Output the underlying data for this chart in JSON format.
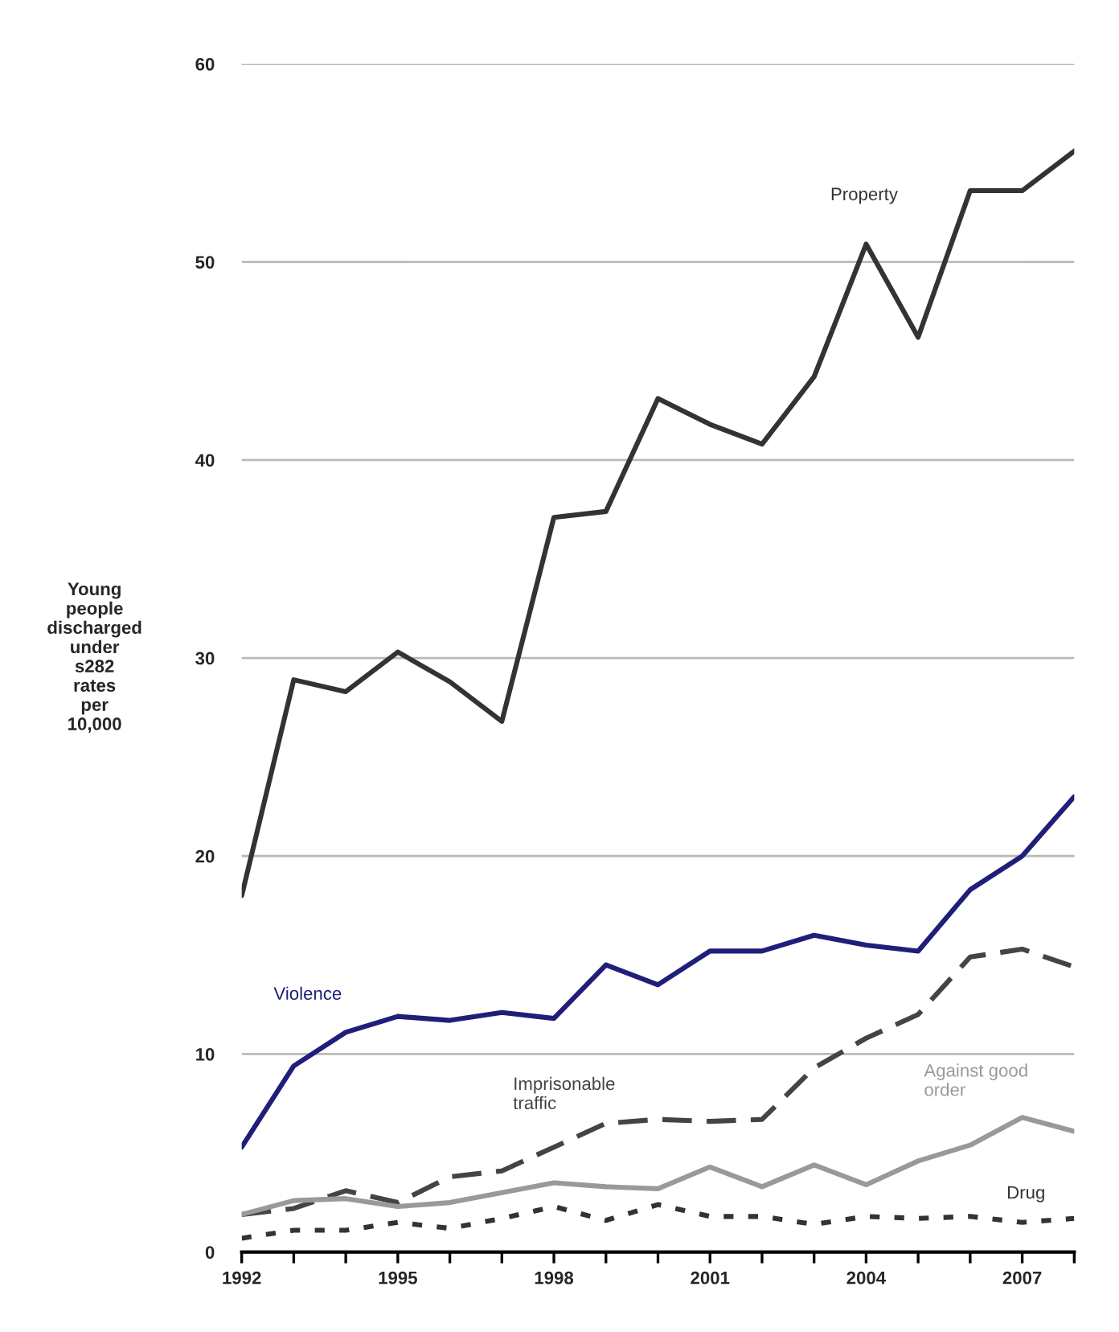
{
  "chart_data": {
    "type": "line",
    "ylabel": "Young\npeople\ndischarged\nunder\ns282\nrates\nper\n10,000",
    "x": [
      1992,
      1993,
      1994,
      1995,
      1996,
      1997,
      1998,
      1999,
      2000,
      2001,
      2002,
      2003,
      2004,
      2005,
      2006,
      2007,
      2008
    ],
    "series": [
      {
        "name": "Property",
        "color": "#333333",
        "line_style": "solid",
        "values": [
          18.0,
          28.9,
          28.3,
          30.3,
          28.8,
          26.8,
          37.1,
          37.4,
          43.1,
          41.8,
          40.8,
          44.2,
          50.9,
          46.2,
          53.6,
          53.6,
          55.6
        ]
      },
      {
        "name": "Violence",
        "color": "#1f1f7a",
        "line_style": "solid",
        "values": [
          5.3,
          9.4,
          11.1,
          11.9,
          11.7,
          12.1,
          11.8,
          14.5,
          13.5,
          15.2,
          15.2,
          16.0,
          15.5,
          15.2,
          18.3,
          20.0,
          23.0
        ]
      },
      {
        "name": "Imprisonable\ntraffic",
        "color": "#444444",
        "line_style": "dashed",
        "values": [
          1.9,
          2.2,
          3.1,
          2.5,
          3.8,
          4.1,
          5.3,
          6.5,
          6.7,
          6.6,
          6.7,
          9.3,
          10.8,
          12.0,
          14.9,
          15.3,
          14.4
        ]
      },
      {
        "name": "Against good\norder",
        "color": "#999999",
        "line_style": "solid",
        "values": [
          1.9,
          2.6,
          2.7,
          2.3,
          2.5,
          3.0,
          3.5,
          3.3,
          3.2,
          4.3,
          3.3,
          4.4,
          3.4,
          4.6,
          5.4,
          6.8,
          6.1
        ]
      },
      {
        "name": "Drug",
        "color": "#333333",
        "line_style": "dotted",
        "values": [
          0.7,
          1.1,
          1.1,
          1.5,
          1.2,
          1.7,
          2.3,
          1.6,
          2.4,
          1.8,
          1.8,
          1.4,
          1.8,
          1.7,
          1.8,
          1.5,
          1.7
        ]
      }
    ],
    "xlim": [
      1992,
      2008
    ],
    "xticks": [
      1992,
      {
        "value": 1993,
        "label": null
      },
      {
        "value": 1994,
        "label": null
      },
      1995,
      {
        "value": 1996,
        "label": null
      },
      {
        "value": 1997,
        "label": null
      },
      1998,
      {
        "value": 1999,
        "label": null
      },
      {
        "value": 2000,
        "label": null
      },
      2001,
      {
        "value": 2002,
        "label": null
      },
      {
        "value": 2003,
        "label": null
      },
      2004,
      {
        "value": 2005,
        "label": null
      },
      {
        "value": 2006,
        "label": null
      },
      2007,
      {
        "value": 2008,
        "label": null
      }
    ],
    "ylim": [
      0,
      60
    ],
    "yticks": [
      0,
      10,
      20,
      30,
      40,
      50,
      60
    ],
    "grid": "y",
    "marker": "none"
  }
}
